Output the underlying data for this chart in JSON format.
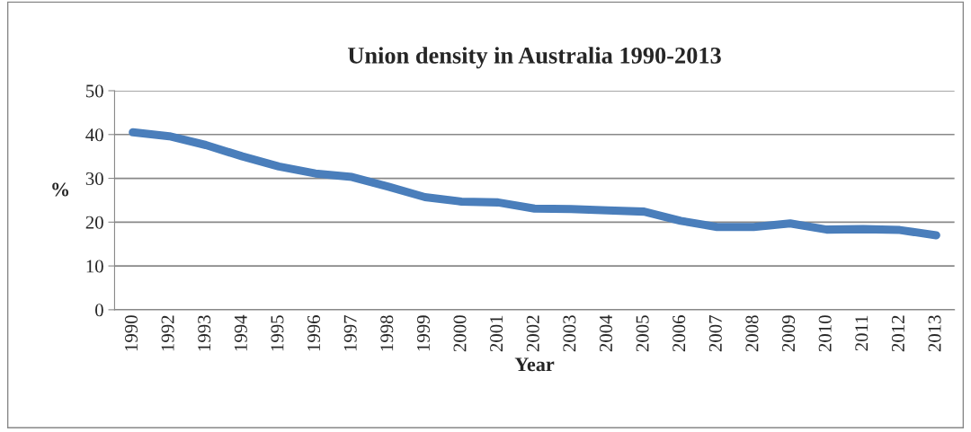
{
  "chart_data": {
    "type": "line",
    "title": "Union density in Australia 1990-2013",
    "xlabel": "Year",
    "ylabel": "%",
    "categories": [
      "1990",
      "1992",
      "1993",
      "1994",
      "1995",
      "1996",
      "1997",
      "1998",
      "1999",
      "2000",
      "2001",
      "2002",
      "2003",
      "2004",
      "2005",
      "2006",
      "2007",
      "2008",
      "2009",
      "2010",
      "2011",
      "2012",
      "2013"
    ],
    "series": [
      {
        "color": "#4a7ebb",
        "values": [
          40.5,
          39.6,
          37.6,
          35.0,
          32.7,
          31.1,
          30.3,
          28.1,
          25.7,
          24.7,
          24.5,
          23.1,
          23.0,
          22.7,
          22.4,
          20.3,
          18.9,
          18.9,
          19.7,
          18.3,
          18.4,
          18.2,
          17.0
        ]
      }
    ],
    "ylim": [
      0,
      50
    ],
    "yticks": [
      0,
      10,
      20,
      30,
      40,
      50
    ],
    "grid": "y",
    "marker": "none",
    "line_style": "solid"
  }
}
